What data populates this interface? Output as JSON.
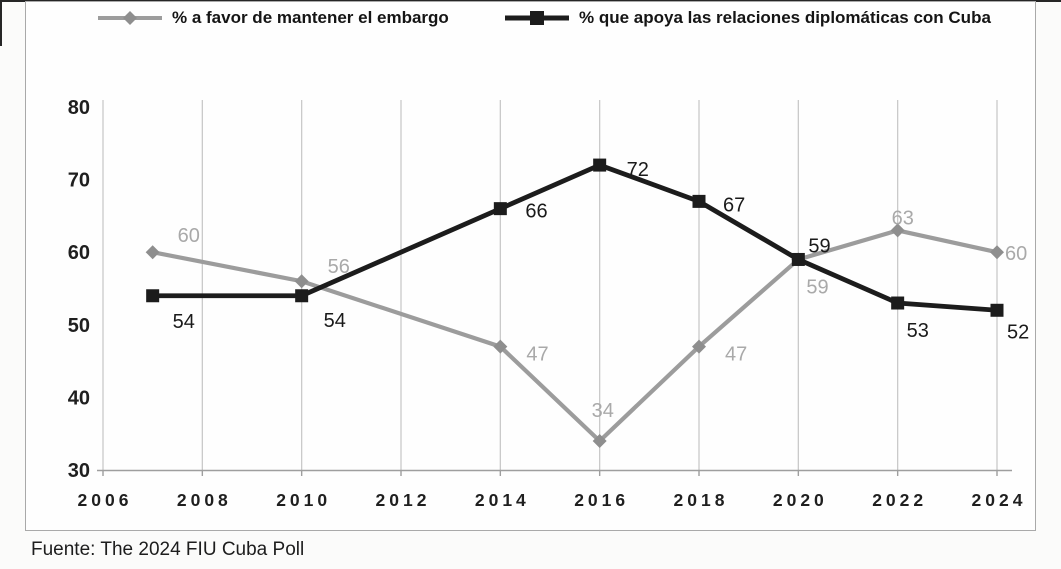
{
  "legend": {
    "items": [
      {
        "label": "% a favor de mantener el embargo",
        "marker": "diamond"
      },
      {
        "label": "% que apoya las relaciones diplomáticas con Cuba",
        "marker": "square"
      }
    ]
  },
  "source_note": "Fuente: The 2024 FIU Cuba Poll",
  "colors": {
    "embargo_line": "#9c9c9c",
    "embargo_marker": "#8e8e8e",
    "embargo_label": "#a9a9a9",
    "diplomatic_line": "#1c1c1c",
    "diplomatic_marker": "#1c1c1c",
    "diplomatic_label": "#1a1a1a",
    "gridline": "#c9c9c9",
    "axis": "#9e9e9e",
    "tick_text": "#1f1f1f"
  },
  "chart_data": {
    "type": "line",
    "title": "",
    "xlabel": "",
    "ylabel": "",
    "x": [
      2007,
      2010,
      2014,
      2016,
      2018,
      2020,
      2022,
      2024
    ],
    "series": [
      {
        "name": "% a favor de mantener el embargo",
        "marker": "diamond",
        "color": "#9c9c9c",
        "marker_color": "#8e8e8e",
        "label_color": "#a9a9a9",
        "values": [
          60,
          56,
          47,
          34,
          47,
          59,
          63,
          60
        ],
        "label_offsets": [
          [
            25,
            -10
          ],
          [
            26,
            -8
          ],
          [
            26,
            14
          ],
          [
            -8,
            -24
          ],
          [
            26,
            14
          ],
          [
            8,
            34
          ],
          [
            -6,
            -6
          ],
          [
            8,
            8
          ]
        ]
      },
      {
        "name": "% que apoya las relaciones diplomáticas con Cuba",
        "marker": "square",
        "color": "#1c1c1c",
        "marker_color": "#1c1c1c",
        "label_color": "#1a1a1a",
        "values": [
          54,
          54,
          66,
          72,
          67,
          59,
          53,
          52
        ],
        "label_offsets": [
          [
            20,
            32
          ],
          [
            22,
            31
          ],
          [
            25,
            9
          ],
          [
            27,
            11
          ],
          [
            24,
            10
          ],
          [
            10,
            -7
          ],
          [
            9,
            34
          ],
          [
            10,
            28
          ]
        ]
      }
    ],
    "xticks": [
      2006,
      2008,
      2010,
      2012,
      2014,
      2016,
      2018,
      2020,
      2022,
      2024
    ],
    "yticks": [
      30,
      40,
      50,
      60,
      70,
      80
    ],
    "xlim": [
      2006,
      2024
    ],
    "ylim": [
      30,
      80
    ],
    "grid": "vertical-only",
    "legend_position": "top",
    "data_labels": true
  }
}
